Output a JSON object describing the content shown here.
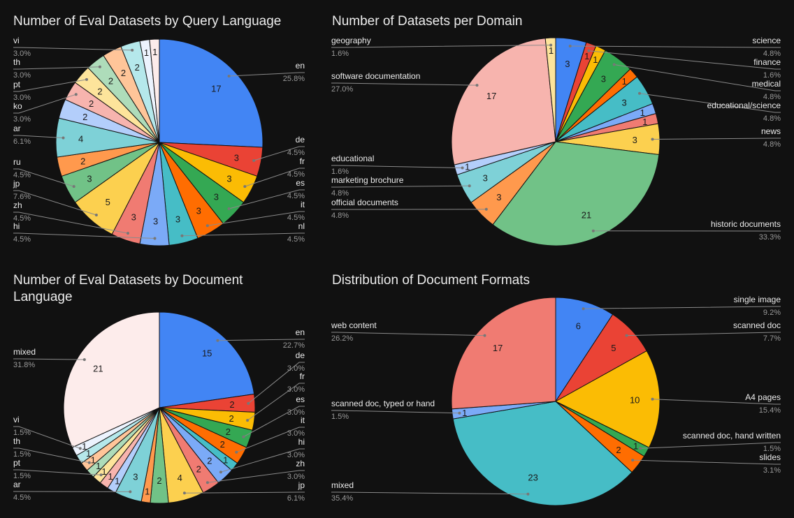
{
  "colors": {
    "background": "#111111",
    "title": "#ececec",
    "label": "#ececec",
    "percent": "#9a9a9a",
    "leader": "#8a8a8a",
    "slice_border": "#111111",
    "palette": [
      "#4285f4",
      "#ea4335",
      "#fbbc04",
      "#34a853",
      "#ff6d01",
      "#46bdc6",
      "#7baaf7",
      "#f07b72",
      "#fcd04f",
      "#71c287",
      "#ff994d",
      "#7ed1d7",
      "#b3cefb",
      "#f7b4ae",
      "#fde49b",
      "#aedcba",
      "#ffc599",
      "#b5e8eb",
      "#ecf3fe",
      "#fdeceb"
    ]
  },
  "chart_data": [
    {
      "id": "query-language",
      "type": "pie",
      "title": "Number of Eval Datasets by Query Language",
      "start_angle_deg": 0,
      "slices": [
        {
          "label": "en",
          "value": 17,
          "percent": "25.8%",
          "color": "#4285f4",
          "side": "right"
        },
        {
          "label": "de",
          "value": 3,
          "percent": "4.5%",
          "color": "#ea4335",
          "side": "right"
        },
        {
          "label": "fr",
          "value": 3,
          "percent": "4.5%",
          "color": "#fbbc04",
          "side": "right"
        },
        {
          "label": "es",
          "value": 3,
          "percent": "4.5%",
          "color": "#34a853",
          "side": "right"
        },
        {
          "label": "it",
          "value": 3,
          "percent": "4.5%",
          "color": "#ff6d01",
          "side": "right"
        },
        {
          "label": "nl",
          "value": 3,
          "percent": "4.5%",
          "color": "#46bdc6",
          "side": "right"
        },
        {
          "label": "hi",
          "value": 3,
          "percent": "4.5%",
          "color": "#7baaf7",
          "side": "left"
        },
        {
          "label": "zh",
          "value": 3,
          "percent": "4.5%",
          "color": "#f07b72",
          "side": "left"
        },
        {
          "label": "jp",
          "value": 5,
          "percent": "7.6%",
          "color": "#fcd04f",
          "side": "left"
        },
        {
          "label": "ru",
          "value": 3,
          "percent": "4.5%",
          "color": "#71c287",
          "side": "left"
        },
        {
          "label": "",
          "value": 2,
          "percent": "",
          "color": "#ff994d",
          "side": "none"
        },
        {
          "label": "ar",
          "value": 4,
          "percent": "6.1%",
          "color": "#7ed1d7",
          "side": "left"
        },
        {
          "label": "",
          "value": 2,
          "percent": "",
          "color": "#b3cefb",
          "side": "none"
        },
        {
          "label": "ko",
          "value": 2,
          "percent": "3.0%",
          "color": "#f7b4ae",
          "side": "left"
        },
        {
          "label": "pt",
          "value": 2,
          "percent": "3.0%",
          "color": "#fde49b",
          "side": "left"
        },
        {
          "label": "th",
          "value": 2,
          "percent": "3.0%",
          "color": "#aedcba",
          "side": "left"
        },
        {
          "label": "",
          "value": 2,
          "percent": "",
          "color": "#ffc599",
          "side": "none"
        },
        {
          "label": "vi",
          "value": 2,
          "percent": "3.0%",
          "color": "#b5e8eb",
          "side": "left"
        },
        {
          "label": "",
          "value": 1,
          "percent": "",
          "color": "#ecf3fe",
          "side": "none"
        },
        {
          "label": "",
          "value": 1,
          "percent": "",
          "color": "#fdeceb",
          "side": "none"
        }
      ]
    },
    {
      "id": "domain",
      "type": "pie",
      "title": "Number of Datasets per Domain",
      "start_angle_deg": 0,
      "slices": [
        {
          "label": "science",
          "value": 3,
          "percent": "4.8%",
          "color": "#4285f4",
          "side": "right"
        },
        {
          "label": "finance",
          "value": 1,
          "percent": "1.6%",
          "color": "#ea4335",
          "side": "right"
        },
        {
          "label": "",
          "value": 1,
          "percent": "",
          "color": "#fbbc04",
          "side": "none"
        },
        {
          "label": "medical",
          "value": 3,
          "percent": "4.8%",
          "color": "#34a853",
          "side": "right"
        },
        {
          "label": "",
          "value": 1,
          "percent": "",
          "color": "#ff6d01",
          "side": "none"
        },
        {
          "label": "educational/science",
          "value": 3,
          "percent": "4.8%",
          "color": "#46bdc6",
          "side": "right"
        },
        {
          "label": "",
          "value": 1,
          "percent": "",
          "color": "#7baaf7",
          "side": "none"
        },
        {
          "label": "",
          "value": 1,
          "percent": "",
          "color": "#f07b72",
          "side": "none"
        },
        {
          "label": "news",
          "value": 3,
          "percent": "4.8%",
          "color": "#fcd04f",
          "side": "right"
        },
        {
          "label": "historic documents",
          "value": 21,
          "percent": "33.3%",
          "color": "#71c287",
          "side": "right"
        },
        {
          "label": "official documents",
          "value": 3,
          "percent": "4.8%",
          "color": "#ff994d",
          "side": "left"
        },
        {
          "label": "marketing brochure",
          "value": 3,
          "percent": "4.8%",
          "color": "#7ed1d7",
          "side": "left"
        },
        {
          "label": "educational",
          "value": 1,
          "percent": "1.6%",
          "color": "#b3cefb",
          "side": "left"
        },
        {
          "label": "software documentation",
          "value": 17,
          "percent": "27.0%",
          "color": "#f7b4ae",
          "side": "left"
        },
        {
          "label": "geography",
          "value": 1,
          "percent": "1.6%",
          "color": "#fde49b",
          "side": "left"
        }
      ]
    },
    {
      "id": "document-language",
      "type": "pie",
      "title": "Number of Eval Datasets by Document Language",
      "start_angle_deg": 0,
      "slices": [
        {
          "label": "en",
          "value": 15,
          "percent": "22.7%",
          "color": "#4285f4",
          "side": "right"
        },
        {
          "label": "de",
          "value": 2,
          "percent": "3.0%",
          "color": "#ea4335",
          "side": "right"
        },
        {
          "label": "fr",
          "value": 2,
          "percent": "3.0%",
          "color": "#fbbc04",
          "side": "right"
        },
        {
          "label": "es",
          "value": 2,
          "percent": "3.0%",
          "color": "#34a853",
          "side": "right"
        },
        {
          "label": "it",
          "value": 2,
          "percent": "3.0%",
          "color": "#ff6d01",
          "side": "right"
        },
        {
          "label": "",
          "value": 1,
          "percent": "",
          "color": "#46bdc6",
          "side": "none"
        },
        {
          "label": "hi",
          "value": 2,
          "percent": "3.0%",
          "color": "#7baaf7",
          "side": "right"
        },
        {
          "label": "zh",
          "value": 2,
          "percent": "3.0%",
          "color": "#f07b72",
          "side": "right"
        },
        {
          "label": "jp",
          "value": 4,
          "percent": "6.1%",
          "color": "#fcd04f",
          "side": "right"
        },
        {
          "label": "",
          "value": 2,
          "percent": "",
          "color": "#71c287",
          "side": "none"
        },
        {
          "label": "",
          "value": 1,
          "percent": "",
          "color": "#ff994d",
          "side": "none"
        },
        {
          "label": "ar",
          "value": 3,
          "percent": "4.5%",
          "color": "#7ed1d7",
          "side": "left"
        },
        {
          "label": "",
          "value": 1,
          "percent": "",
          "color": "#b3cefb",
          "side": "none"
        },
        {
          "label": "",
          "value": 1,
          "percent": "",
          "color": "#f7b4ae",
          "side": "none"
        },
        {
          "label": "pt",
          "value": 1,
          "percent": "1.5%",
          "color": "#fde49b",
          "side": "left"
        },
        {
          "label": "",
          "value": 1,
          "percent": "",
          "color": "#aedcba",
          "side": "none"
        },
        {
          "label": "th",
          "value": 1,
          "percent": "1.5%",
          "color": "#ffc599",
          "side": "left"
        },
        {
          "label": "",
          "value": 1,
          "percent": "",
          "color": "#b5e8eb",
          "side": "none"
        },
        {
          "label": "vi",
          "value": 1,
          "percent": "1.5%",
          "color": "#ecf3fe",
          "side": "left"
        },
        {
          "label": "mixed",
          "value": 21,
          "percent": "31.8%",
          "color": "#fdeceb",
          "side": "left"
        }
      ]
    },
    {
      "id": "document-formats",
      "type": "pie",
      "title": "Distribution of Document Formats",
      "start_angle_deg": 0,
      "slices": [
        {
          "label": "single image",
          "value": 6,
          "percent": "9.2%",
          "color": "#4285f4",
          "side": "right"
        },
        {
          "label": "scanned doc",
          "value": 5,
          "percent": "7.7%",
          "color": "#ea4335",
          "side": "right"
        },
        {
          "label": "A4 pages",
          "value": 10,
          "percent": "15.4%",
          "color": "#fbbc04",
          "side": "right"
        },
        {
          "label": "scanned doc, hand written",
          "value": 1,
          "percent": "1.5%",
          "color": "#34a853",
          "side": "right"
        },
        {
          "label": "slides",
          "value": 2,
          "percent": "3.1%",
          "color": "#ff6d01",
          "side": "right"
        },
        {
          "label": "mixed",
          "value": 23,
          "percent": "35.4%",
          "color": "#46bdc6",
          "side": "left"
        },
        {
          "label": "scanned doc, typed or hand",
          "value": 1,
          "percent": "1.5%",
          "color": "#7baaf7",
          "side": "left"
        },
        {
          "label": "web content",
          "value": 17,
          "percent": "26.2%",
          "color": "#f07b72",
          "side": "left"
        }
      ]
    }
  ]
}
